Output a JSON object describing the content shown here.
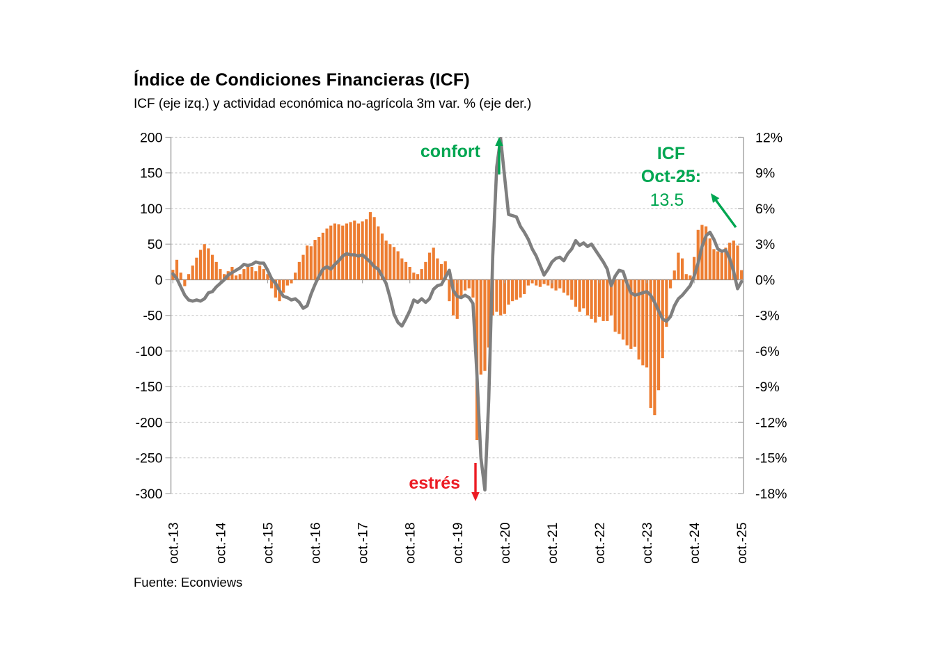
{
  "header": {
    "title": "Índice de Condiciones Financieras (ICF)",
    "subtitle": "ICF (eje izq.) y actividad económica no-agrícola 3m var. % (eje der.)"
  },
  "footer": {
    "source": "Fuente: Econviews"
  },
  "colors": {
    "bar_orange": "#ED7D31",
    "line_gray": "#7F7F7F",
    "grid": "#C9C9C9",
    "axis": "#A6A6A6",
    "zero_axis": "#8C8C8C",
    "green": "#00A651",
    "red": "#EC1C24",
    "text": "#000000"
  },
  "chart_data": {
    "type": "combo-bar-line",
    "title": "Índice de Condiciones Financieras (ICF)",
    "subtitle": "ICF (eje izq.) y actividad económica no-agrícola 3m var. % (eje der.)",
    "frequency": "monthly",
    "x_start": "2013-10",
    "x_end": "2025-10",
    "x_tick_labels": [
      "oct.-13",
      "oct.-14",
      "oct.-15",
      "oct.-16",
      "oct.-17",
      "oct.-18",
      "oct.-19",
      "oct.-20",
      "oct.-21",
      "oct.-22",
      "oct.-23",
      "oct.-24",
      "oct.-25"
    ],
    "grid": "dashed-horizontal",
    "legend": "none",
    "left_axis": {
      "label": "ICF (eje izq.)",
      "min": -300,
      "max": 200,
      "step": 50,
      "tick_labels": [
        "200",
        "150",
        "100",
        "50",
        "0",
        "-50",
        "-100",
        "-150",
        "-200",
        "-250",
        "-300"
      ]
    },
    "right_axis": {
      "label": "actividad económica no-agrícola 3m var. % (eje der.)",
      "min": -18,
      "max": 12,
      "step": 3,
      "tick_labels": [
        "12%",
        "9%",
        "6%",
        "3%",
        "0%",
        "-3%",
        "-6%",
        "-9%",
        "-12%",
        "-15%",
        "-18%"
      ]
    },
    "series": [
      {
        "name": "ICF",
        "type": "bar",
        "axis": "left",
        "color": "#ED7D31",
        "values": [
          14,
          28,
          10,
          -9,
          8,
          20,
          31,
          42,
          50,
          44,
          35,
          25,
          15,
          8,
          12,
          18,
          6,
          8,
          15,
          22,
          18,
          12,
          20,
          15,
          8,
          -12,
          -25,
          -30,
          -18,
          -8,
          -5,
          10,
          25,
          35,
          48,
          47,
          56,
          60,
          66,
          72,
          76,
          79,
          78,
          76,
          79,
          81,
          83,
          79,
          82,
          85,
          95,
          88,
          75,
          65,
          55,
          50,
          46,
          40,
          30,
          25,
          18,
          10,
          8,
          15,
          25,
          38,
          45,
          30,
          22,
          26,
          -30,
          -50,
          -55,
          -25,
          -15,
          -12,
          -25,
          -225,
          -133,
          -128,
          -95,
          -50,
          -45,
          -50,
          -48,
          -35,
          -30,
          -28,
          -25,
          -20,
          -8,
          -5,
          -8,
          -10,
          -6,
          -8,
          -12,
          -15,
          -12,
          -18,
          -22,
          -28,
          -38,
          -45,
          -40,
          -50,
          -55,
          -60,
          -52,
          -58,
          -58,
          -50,
          -73,
          -76,
          -84,
          -92,
          -97,
          -94,
          -112,
          -120,
          -123,
          -180,
          -190,
          -155,
          -110,
          -66,
          -12,
          13,
          38,
          30,
          8,
          6,
          32,
          70,
          77,
          75,
          58,
          43,
          40,
          38,
          45,
          52,
          55,
          48,
          13.5
        ]
      },
      {
        "name": "actividad económica no-agrícola 3m var. %",
        "type": "line",
        "axis": "right",
        "color": "#7F7F7F",
        "values": [
          0.5,
          0.1,
          -0.6,
          -1.3,
          -1.7,
          -1.8,
          -1.7,
          -1.8,
          -1.6,
          -1.1,
          -1.0,
          -0.6,
          -0.3,
          0.0,
          0.4,
          0.6,
          0.8,
          1.0,
          1.3,
          1.2,
          1.3,
          1.5,
          1.4,
          1.4,
          0.8,
          0.1,
          -0.3,
          -0.9,
          -1.4,
          -1.5,
          -1.7,
          -1.6,
          -1.9,
          -2.4,
          -2.2,
          -1.2,
          -0.4,
          0.3,
          0.9,
          1.1,
          0.9,
          1.3,
          1.6,
          2.0,
          2.2,
          2.1,
          2.1,
          2.0,
          2.1,
          1.8,
          1.5,
          1.1,
          0.9,
          0.3,
          -0.3,
          -1.5,
          -2.9,
          -3.6,
          -3.9,
          -3.3,
          -2.6,
          -1.7,
          -1.9,
          -1.6,
          -1.9,
          -1.6,
          -0.8,
          -0.5,
          -0.4,
          0.2,
          0.8,
          -0.9,
          -1.4,
          -1.5,
          -1.3,
          -1.5,
          -2.0,
          -8.0,
          -15.0,
          -17.7,
          -10.0,
          2.0,
          9.5,
          11.9,
          8.7,
          5.5,
          5.4,
          5.3,
          4.5,
          4.0,
          3.4,
          2.6,
          2.0,
          1.2,
          0.4,
          0.9,
          1.5,
          1.8,
          1.9,
          1.6,
          2.2,
          2.6,
          3.3,
          2.9,
          3.1,
          2.8,
          3.0,
          2.5,
          2.0,
          1.5,
          0.9,
          -0.5,
          0.3,
          0.8,
          0.7,
          -0.3,
          -1.1,
          -1.3,
          -1.2,
          -1.1,
          -1.0,
          -1.3,
          -1.9,
          -2.6,
          -3.3,
          -3.5,
          -3.1,
          -2.2,
          -1.6,
          -1.3,
          -0.9,
          -0.5,
          0.3,
          1.4,
          2.8,
          3.7,
          4.0,
          3.4,
          2.6,
          2.4,
          2.5,
          1.8,
          0.7,
          -0.75,
          -0.15
        ]
      }
    ],
    "annotations": [
      {
        "id": "confort",
        "text": "confort",
        "color": "#00A651",
        "arrow": "up"
      },
      {
        "id": "estres",
        "text": "estrés",
        "color": "#EC1C24",
        "arrow": "down"
      },
      {
        "id": "icf-latest",
        "line1": "ICF",
        "line2": "Oct-25:",
        "value": "13.5",
        "color": "#00A651",
        "arrow": "up-left"
      }
    ]
  }
}
